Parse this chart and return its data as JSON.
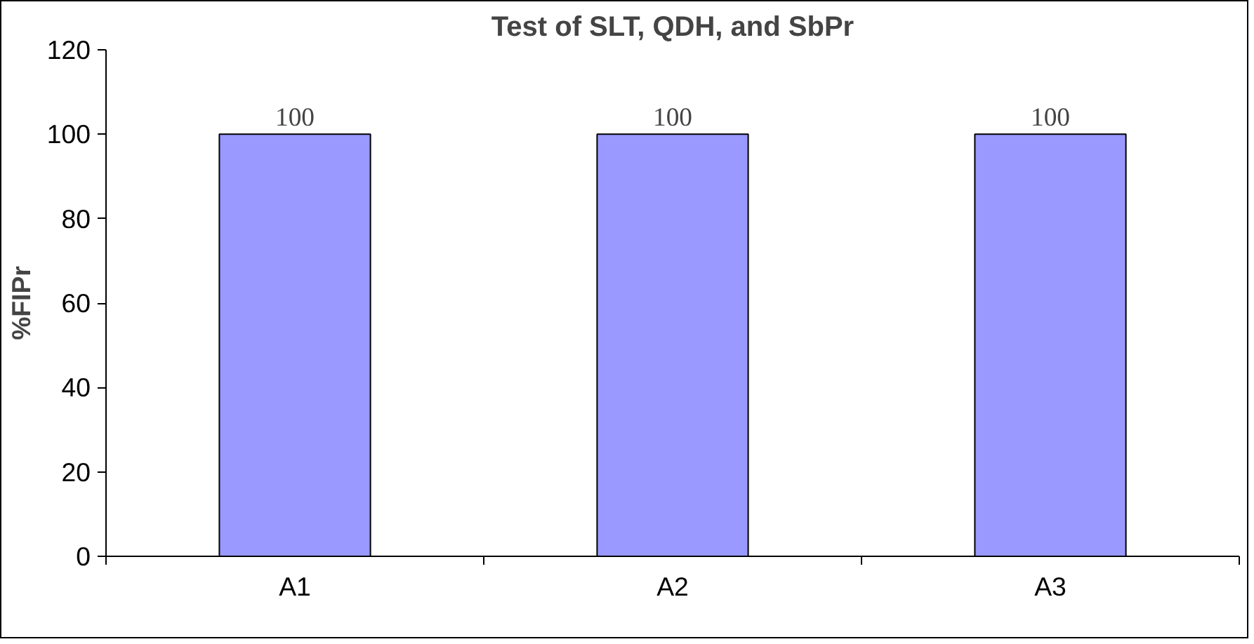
{
  "chart_data": {
    "type": "bar",
    "title": "Test of SLT, QDH, and SbPr",
    "ylabel": "%FIPr",
    "categories": [
      "A1",
      "A2",
      "A3"
    ],
    "values": [
      100,
      100,
      100
    ],
    "color": "#9999ff",
    "ylim": [
      0,
      120
    ],
    "yticks": [
      0,
      20,
      40,
      60,
      80,
      100,
      120
    ],
    "grid": false,
    "data_labels": true
  }
}
